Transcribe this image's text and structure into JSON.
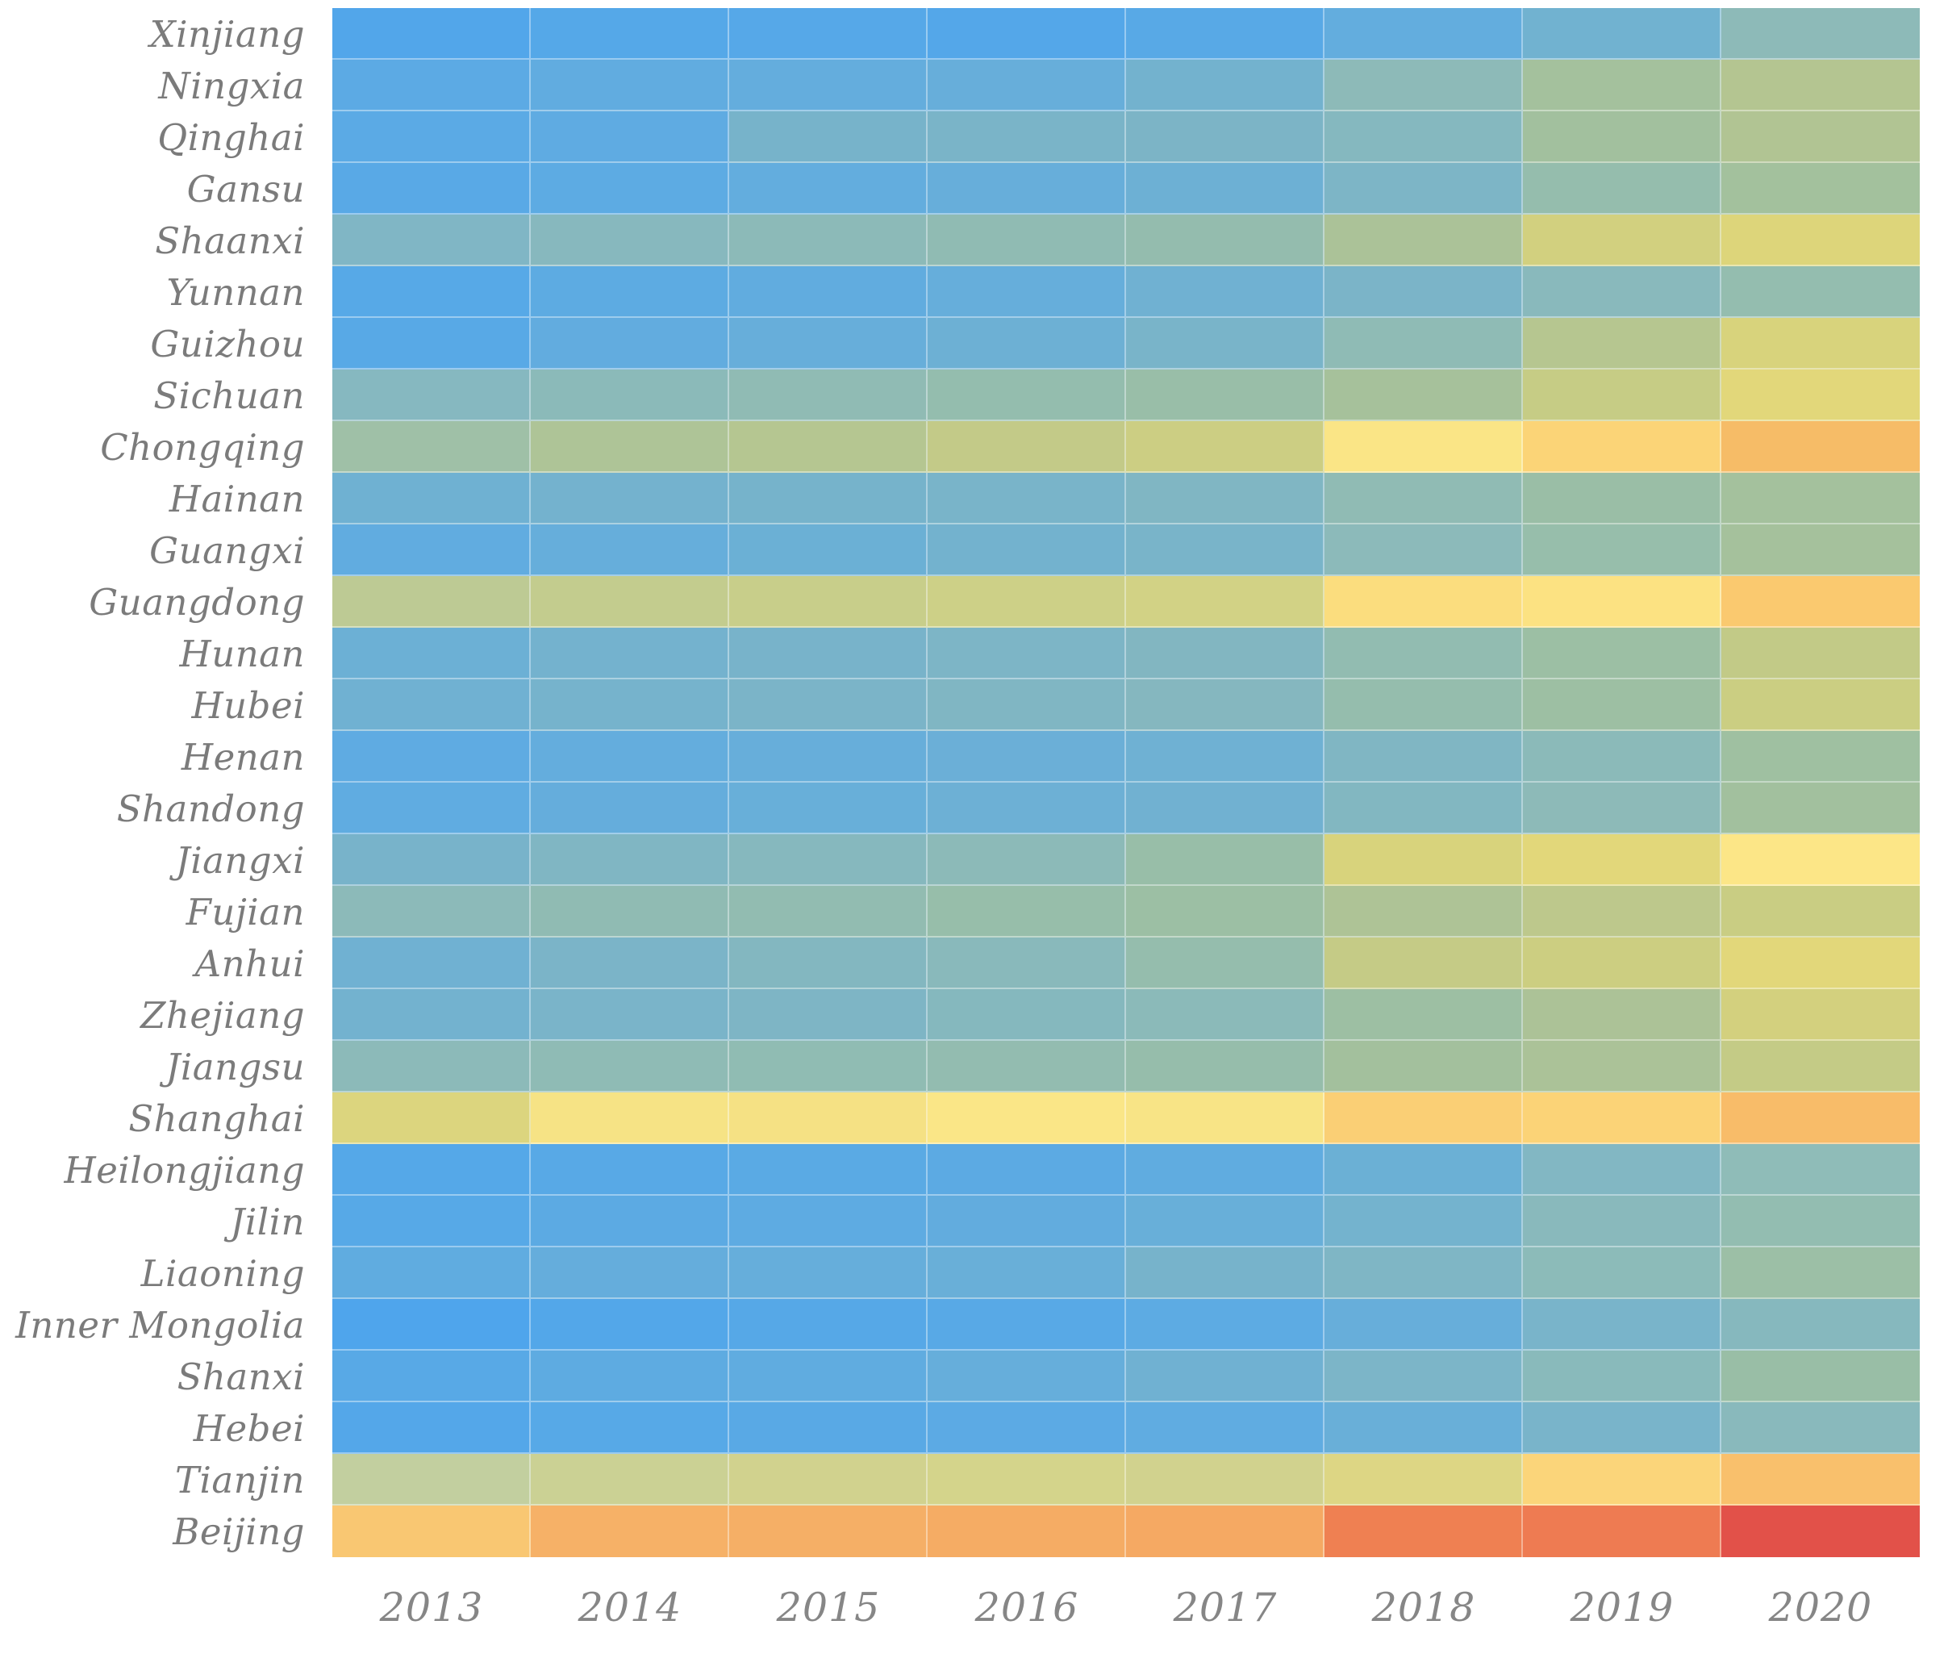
{
  "chart_data": {
    "type": "heatmap",
    "title": "",
    "xlabel": "",
    "ylabel": "",
    "legend_position": "none",
    "grid": "off",
    "value_encoding": "color only (no numeric labels or colorbar shown); blue = low, yellow = mid, orange/red = high",
    "columns": [
      "2013",
      "2014",
      "2015",
      "2016",
      "2017",
      "2018",
      "2019",
      "2020"
    ],
    "rows": [
      "Xinjiang",
      "Ningxia",
      "Qinghai",
      "Gansu",
      "Shaanxi",
      "Yunnan",
      "Guizhou",
      "Sichuan",
      "Chongqing",
      "Hainan",
      "Guangxi",
      "Guangdong",
      "Hunan",
      "Hubei",
      "Henan",
      "Shandong",
      "Jiangxi",
      "Fujian",
      "Anhui",
      "Zhejiang",
      "Jiangsu",
      "Shanghai",
      "Heilongjiang",
      "Jilin",
      "Liaoning",
      "Inner Mongolia",
      "Shanxi",
      "Hebei",
      "Tianjin",
      "Beijing"
    ],
    "cell_colors": [
      [
        "#52a6ea",
        "#55a8e8",
        "#56a8e8",
        "#54a7e9",
        "#58a9e6",
        "#63adde",
        "#71b2d0",
        "#8dbab8"
      ],
      [
        "#5caae4",
        "#61ace0",
        "#64addd",
        "#67aeda",
        "#73b2ce",
        "#8dbab8",
        "#a4c19d",
        "#b4c591"
      ],
      [
        "#5baae5",
        "#5fabe2",
        "#77b3ca",
        "#7ab4c8",
        "#7cb4c6",
        "#85b8bf",
        "#a2c09e",
        "#b1c493"
      ],
      [
        "#59a9e6",
        "#5dabe3",
        "#63adde",
        "#67aeda",
        "#6db0d4",
        "#7db5c6",
        "#95bdad",
        "#a3c19d"
      ],
      [
        "#80b6c5",
        "#87b8be",
        "#8cbab8",
        "#90bbb3",
        "#94bcae",
        "#abc298",
        "#d2d07f",
        "#ddd57a"
      ],
      [
        "#57a9e7",
        "#5dabe2",
        "#61acdf",
        "#66aedb",
        "#70b1d2",
        "#7bb4c8",
        "#89b9bc",
        "#94bdaf"
      ],
      [
        "#58a9e6",
        "#62acdf",
        "#67aeda",
        "#6db0d4",
        "#79b4c9",
        "#8fbbb5",
        "#b6c690",
        "#d8d37c"
      ],
      [
        "#86b8c0",
        "#8bbab9",
        "#90bbb4",
        "#94bdae",
        "#99bea8",
        "#a6c19b",
        "#c6cc85",
        "#e2d77a"
      ],
      [
        "#9fc0a7",
        "#aec497",
        "#b5c691",
        "#c3ca88",
        "#ccce83",
        "#fae586",
        "#fbd477",
        "#f6bc67"
      ],
      [
        "#6fb1d2",
        "#74b2ce",
        "#76b3cb",
        "#79b4c9",
        "#80b6c3",
        "#90bbb4",
        "#9abea6",
        "#a4c19d"
      ],
      [
        "#61ace0",
        "#66aedb",
        "#6bb0d5",
        "#73b2ce",
        "#79b4c9",
        "#8cbaba",
        "#97beab",
        "#a5c19c"
      ],
      [
        "#bdca94",
        "#c3cc8e",
        "#c8ce8a",
        "#cdd087",
        "#d2d285",
        "#fbdd7e",
        "#fce282",
        "#fac96f"
      ],
      [
        "#6cb0d5",
        "#74b2ce",
        "#78b3ca",
        "#7db5c6",
        "#82b6c1",
        "#92bcb1",
        "#9cbfa4",
        "#c2ca87"
      ],
      [
        "#70b1d2",
        "#76b3cc",
        "#7bb4c8",
        "#80b6c3",
        "#85b7bf",
        "#95bdad",
        "#9dbfa3",
        "#cbce82"
      ],
      [
        "#5fabe2",
        "#64addd",
        "#67aeda",
        "#6bafd7",
        "#6fb1d3",
        "#80b6c3",
        "#8bbab9",
        "#9fc0a1"
      ],
      [
        "#60ace1",
        "#65addc",
        "#68afd9",
        "#6db0d5",
        "#71b1d1",
        "#82b7c1",
        "#8dbab8",
        "#a2c09e"
      ],
      [
        "#78b3ca",
        "#80b6c3",
        "#86b8be",
        "#8cbab8",
        "#98bea8",
        "#d8d37c",
        "#e2d77a",
        "#fce687"
      ],
      [
        "#8cbab9",
        "#90bbb3",
        "#92bcb1",
        "#97beaa",
        "#9cbfa4",
        "#aec396",
        "#bdc88c",
        "#c9cd83"
      ],
      [
        "#70b1d2",
        "#7bb4c8",
        "#83b7c0",
        "#89b9bb",
        "#95bdad",
        "#c5cb86",
        "#ccce81",
        "#e2d77a"
      ],
      [
        "#73b2cf",
        "#7ab4c9",
        "#7eb5c5",
        "#85b8be",
        "#8bbab9",
        "#9dbfa3",
        "#acc297",
        "#d3d07e"
      ],
      [
        "#8cbab9",
        "#8fbbb5",
        "#90bcb3",
        "#93bcb0",
        "#96bdab",
        "#a3c09d",
        "#abc298",
        "#c4cb86"
      ],
      [
        "#dcd57e",
        "#f6e385",
        "#f5e184",
        "#fae687",
        "#f8e486",
        "#facf75",
        "#fbd377",
        "#f8bc69"
      ],
      [
        "#55a8e8",
        "#58a9e6",
        "#5aaae4",
        "#5caae3",
        "#60ace0",
        "#6bb0d5",
        "#82b7c3",
        "#8fbcb8"
      ],
      [
        "#57a9e7",
        "#5caae3",
        "#5eabe2",
        "#62acde",
        "#68afd9",
        "#74b3ce",
        "#89b9bc",
        "#93bdb1"
      ],
      [
        "#60ace0",
        "#65addc",
        "#66aedb",
        "#69afd8",
        "#77b3cb",
        "#7fb6c5",
        "#8cbbb9",
        "#9cbfa6"
      ],
      [
        "#4fa5ec",
        "#53a7e9",
        "#56a8e7",
        "#58a9e6",
        "#5dabe3",
        "#67aeda",
        "#79b4ca",
        "#86b8be"
      ],
      [
        "#58a9e6",
        "#5eabe1",
        "#60ace0",
        "#66aedb",
        "#70b1d2",
        "#7cb5c8",
        "#89babb",
        "#99bea6"
      ],
      [
        "#54a7e9",
        "#57a9e7",
        "#59a9e5",
        "#5caae4",
        "#60ace1",
        "#69afd8",
        "#79b4ca",
        "#89b9bc"
      ],
      [
        "#c2cf9f",
        "#cbd194",
        "#d1d28e",
        "#d4d48b",
        "#d1d28e",
        "#ddd684",
        "#fbd57a",
        "#f9c06c"
      ],
      [
        "#f9c772",
        "#f6b167",
        "#f5af66",
        "#f5ac64",
        "#f5a963",
        "#ef8052",
        "#ee7b52",
        "#e25149"
      ]
    ],
    "color_extremes": {
      "lowest_blue": "#4fa5ec",
      "highest_red": "#e25149"
    },
    "tick_label_color": "#7b7b7b"
  }
}
